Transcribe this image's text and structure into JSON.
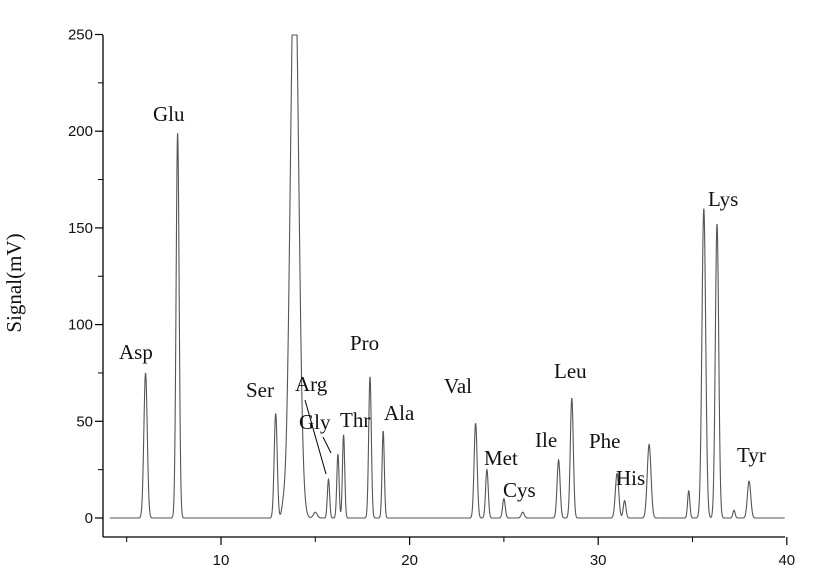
{
  "chart_data": {
    "type": "line",
    "title": "",
    "xlabel": "",
    "ylabel": "Signal(mV)",
    "xlim": [
      4,
      40
    ],
    "ylim": [
      0,
      250
    ],
    "grid": false,
    "x_ticks": [
      10,
      20,
      30,
      40
    ],
    "y_ticks": [
      0,
      50,
      100,
      150,
      200,
      250
    ],
    "baseline": 0,
    "peaks": [
      {
        "name": "Asp",
        "rt": 6.0,
        "height": 75,
        "width": 0.09
      },
      {
        "name": "Glu",
        "rt": 7.7,
        "height": 199,
        "width": 0.08
      },
      {
        "name": "Ser",
        "rt": 12.9,
        "height": 54,
        "width": 0.08
      },
      {
        "name": "",
        "rt": 13.3,
        "height": 4,
        "width": 0.08
      },
      {
        "name": "",
        "rt": 13.9,
        "height": 300,
        "width": 0.22
      },
      {
        "name": "",
        "rt": 15.0,
        "height": 3,
        "width": 0.1
      },
      {
        "name": "Arg",
        "rt": 15.7,
        "height": 20,
        "width": 0.06
      },
      {
        "name": "Gly",
        "rt": 16.2,
        "height": 33,
        "width": 0.06
      },
      {
        "name": "Thr",
        "rt": 16.5,
        "height": 43,
        "width": 0.06
      },
      {
        "name": "Pro",
        "rt": 17.9,
        "height": 73,
        "width": 0.07
      },
      {
        "name": "Ala",
        "rt": 18.6,
        "height": 45,
        "width": 0.06
      },
      {
        "name": "Val",
        "rt": 23.5,
        "height": 49,
        "width": 0.08
      },
      {
        "name": "Met",
        "rt": 24.1,
        "height": 25,
        "width": 0.07
      },
      {
        "name": "Cys",
        "rt": 25.0,
        "height": 10,
        "width": 0.07
      },
      {
        "name": "",
        "rt": 26.0,
        "height": 3,
        "width": 0.08
      },
      {
        "name": "Ile",
        "rt": 27.9,
        "height": 30,
        "width": 0.08
      },
      {
        "name": "Leu",
        "rt": 28.6,
        "height": 62,
        "width": 0.08
      },
      {
        "name": "Phe",
        "rt": 31.0,
        "height": 23,
        "width": 0.09
      },
      {
        "name": "His",
        "rt": 31.4,
        "height": 9,
        "width": 0.07
      },
      {
        "name": "",
        "rt": 32.7,
        "height": 38,
        "width": 0.1
      },
      {
        "name": "",
        "rt": 34.8,
        "height": 14,
        "width": 0.06
      },
      {
        "name": "Lys",
        "rt": 35.6,
        "height": 160,
        "width": 0.1
      },
      {
        "name": "",
        "rt": 36.3,
        "height": 152,
        "width": 0.09
      },
      {
        "name": "",
        "rt": 37.2,
        "height": 4,
        "width": 0.06
      },
      {
        "name": "Tyr",
        "rt": 38.0,
        "height": 19,
        "width": 0.09
      }
    ]
  },
  "labels": {
    "asp": "Asp",
    "glu": "Glu",
    "ser": "Ser",
    "arg": "Arg",
    "gly": "Gly",
    "thr": "Thr",
    "pro": "Pro",
    "ala": "Ala",
    "val": "Val",
    "met": "Met",
    "cys": "Cys",
    "ile": "Ile",
    "leu": "Leu",
    "phe": "Phe",
    "his": "His",
    "lys": "Lys",
    "tyr": "Tyr"
  },
  "colors": {
    "trace": "#555555",
    "axis": "#000000"
  }
}
